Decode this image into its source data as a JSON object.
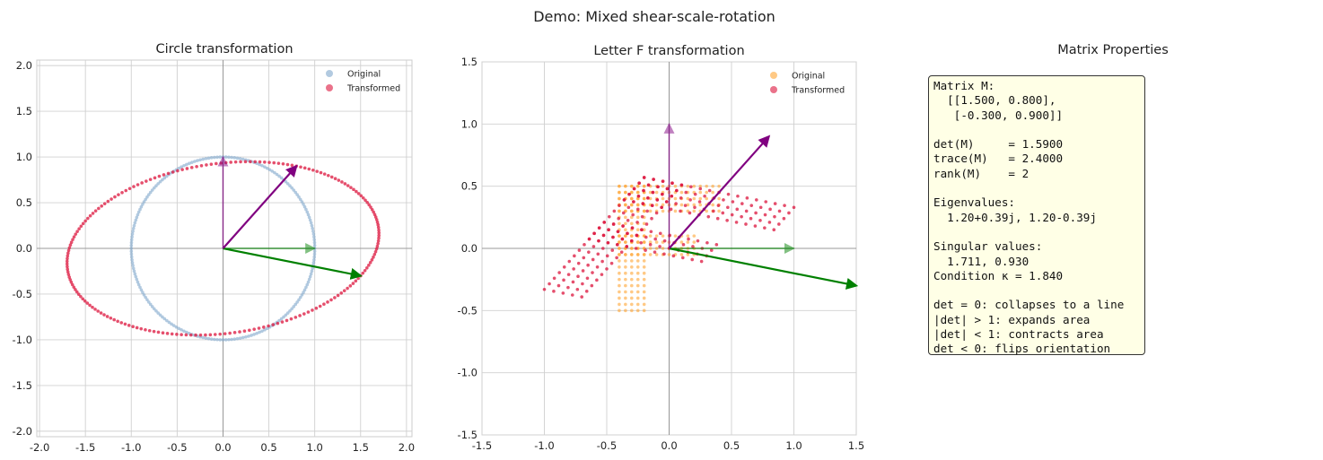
{
  "suptitle": "Demo: Mixed shear-scale-rotation",
  "colors": {
    "circle_original": "#7fa7cc",
    "transformed": "#dc143c",
    "f_original": "#ffa533",
    "e1": "#008000",
    "e2": "#800080"
  },
  "chart_data": [
    {
      "type": "scatter",
      "title": "Circle transformation",
      "xlim": [
        -2.03,
        2.06
      ],
      "ylim": [
        -2.06,
        2.06
      ],
      "xticks": [
        "-2.0",
        "-1.5",
        "-1.0",
        "-0.5",
        "0.0",
        "0.5",
        "1.0",
        "1.5",
        "2.0"
      ],
      "yticks": [
        "-2.0",
        "-1.5",
        "-1.0",
        "-0.5",
        "0.0",
        "0.5",
        "1.0",
        "1.5",
        "2.0"
      ],
      "grid": true,
      "legend": "top-right",
      "original": {
        "shape": "unit circle",
        "radius": 1,
        "points": 200
      },
      "legend_entries": [
        "Original",
        "Transformed"
      ],
      "vectors": {
        "e1": [
          1,
          0
        ],
        "e2": [
          0,
          1
        ],
        "Me1": [
          1.5,
          -0.3
        ],
        "Me2": [
          0.8,
          0.9
        ]
      }
    },
    {
      "type": "scatter",
      "title": "Letter F transformation",
      "xlim": [
        -1.5,
        1.5
      ],
      "ylim": [
        -1.5,
        1.5
      ],
      "xticks": [
        "-1.5",
        "-1.0",
        "-0.5",
        "0.0",
        "0.5",
        "1.0",
        "1.5"
      ],
      "yticks": [
        "-1.5",
        "-1.0",
        "-0.5",
        "0.0",
        "0.5",
        "1.0",
        "1.5"
      ],
      "grid": true,
      "legend": "top-right",
      "original": {
        "shape": "letter F",
        "regions": [
          {
            "x": [
              -0.4,
              -0.2
            ],
            "y": [
              -0.5,
              0.5
            ],
            "step": 0.05
          },
          {
            "x": [
              -0.4,
              0.4
            ],
            "y": [
              0.3,
              0.5
            ],
            "step": 0.05
          },
          {
            "x": [
              -0.4,
              0.2
            ],
            "y": [
              -0.05,
              0.1
            ],
            "step": 0.05
          }
        ]
      },
      "legend_entries": [
        "Original",
        "Transformed"
      ],
      "vectors": {
        "e1": [
          1,
          0
        ],
        "e2": [
          0,
          1
        ],
        "Me1": [
          1.5,
          -0.3
        ],
        "Me2": [
          0.8,
          0.9
        ]
      }
    }
  ],
  "matrix": [
    [
      1.5,
      0.8
    ],
    [
      -0.3,
      0.9
    ]
  ],
  "properties": {
    "title": "Matrix Properties",
    "lines": [
      "Matrix M:",
      "  [[1.500, 0.800],",
      "   [-0.300, 0.900]]",
      "",
      "det(M)     = 1.5900",
      "trace(M)   = 2.4000",
      "rank(M)    = 2",
      "",
      "Eigenvalues:",
      "  1.20+0.39j, 1.20-0.39j",
      "",
      "Singular values:",
      "  1.711, 0.930",
      "Condition κ = 1.840",
      "",
      "det = 0: collapses to a line",
      "|det| > 1: expands area",
      "|det| < 1: contracts area",
      "det < 0: flips orientation"
    ]
  }
}
